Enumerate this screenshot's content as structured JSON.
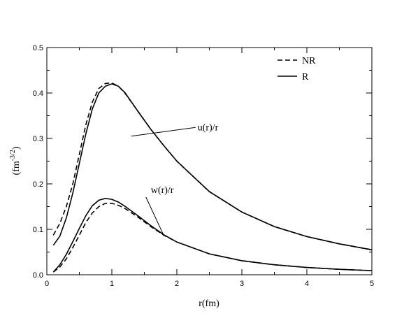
{
  "chart_data": {
    "type": "line",
    "xlabel": "r(fm)",
    "ylabel": "(fm",
    "ylabel_sup": "-3/2",
    "ylabel_close": ")",
    "xlim": [
      0,
      5
    ],
    "ylim": [
      0,
      0.5
    ],
    "x_ticks": [
      0,
      1,
      2,
      3,
      4,
      5
    ],
    "x_tick_labels": [
      "0",
      "1",
      "2",
      "3",
      "4",
      "5"
    ],
    "y_ticks": [
      0,
      0.1,
      0.2,
      0.3,
      0.4,
      0.5
    ],
    "y_tick_labels": [
      "0.0",
      "0.1",
      "0.2",
      "0.3",
      "0.4",
      "0.5"
    ],
    "grid": false,
    "legend_position": "top-right",
    "legend": [
      {
        "label": "NR",
        "dash": "dashed"
      },
      {
        "label": "R",
        "dash": "solid"
      }
    ],
    "annotations": [
      {
        "text": "u(r)/r",
        "x": 1.3,
        "y": 0.305,
        "text_x": 2.32,
        "text_y": 0.318
      },
      {
        "text": "w(r)/r",
        "x": 1.8,
        "y": 0.086,
        "text_x": 1.6,
        "text_y": 0.18
      }
    ],
    "series": [
      {
        "name": "NR",
        "component": "u(r)/r",
        "dash": "dashed",
        "x": [
          0.1,
          0.2,
          0.3,
          0.4,
          0.5,
          0.6,
          0.7,
          0.8,
          0.9,
          1.0,
          1.1,
          1.2,
          1.4,
          1.6,
          1.8,
          2.0,
          2.5,
          3.0,
          3.5,
          4.0,
          4.5,
          5.0
        ],
        "y": [
          0.087,
          0.113,
          0.15,
          0.2,
          0.265,
          0.33,
          0.38,
          0.41,
          0.421,
          0.422,
          0.415,
          0.4,
          0.36,
          0.32,
          0.284,
          0.25,
          0.183,
          0.138,
          0.106,
          0.084,
          0.068,
          0.055
        ]
      },
      {
        "name": "R",
        "component": "u(r)/r",
        "dash": "solid",
        "x": [
          0.1,
          0.2,
          0.3,
          0.4,
          0.5,
          0.6,
          0.7,
          0.8,
          0.9,
          1.0,
          1.1,
          1.2,
          1.4,
          1.6,
          1.8,
          2.0,
          2.5,
          3.0,
          3.5,
          4.0,
          4.5,
          5.0
        ],
        "y": [
          0.065,
          0.085,
          0.125,
          0.18,
          0.245,
          0.31,
          0.365,
          0.4,
          0.415,
          0.42,
          0.415,
          0.401,
          0.36,
          0.32,
          0.284,
          0.25,
          0.183,
          0.138,
          0.106,
          0.084,
          0.068,
          0.055
        ]
      },
      {
        "name": "NR",
        "component": "w(r)/r",
        "dash": "dashed",
        "x": [
          0.1,
          0.2,
          0.3,
          0.4,
          0.5,
          0.6,
          0.7,
          0.8,
          0.9,
          1.0,
          1.1,
          1.2,
          1.4,
          1.6,
          1.8,
          2.0,
          2.5,
          3.0,
          3.5,
          4.0,
          4.5,
          5.0
        ],
        "y": [
          0.006,
          0.017,
          0.035,
          0.06,
          0.087,
          0.115,
          0.136,
          0.15,
          0.157,
          0.157,
          0.153,
          0.146,
          0.127,
          0.106,
          0.087,
          0.072,
          0.046,
          0.031,
          0.022,
          0.016,
          0.012,
          0.009
        ]
      },
      {
        "name": "R",
        "component": "w(r)/r",
        "dash": "solid",
        "x": [
          0.1,
          0.2,
          0.3,
          0.4,
          0.5,
          0.6,
          0.7,
          0.8,
          0.9,
          1.0,
          1.1,
          1.2,
          1.4,
          1.6,
          1.8,
          2.0,
          2.5,
          3.0,
          3.5,
          4.0,
          4.5,
          5.0
        ],
        "y": [
          0.006,
          0.022,
          0.045,
          0.073,
          0.102,
          0.13,
          0.152,
          0.164,
          0.168,
          0.166,
          0.16,
          0.151,
          0.13,
          0.108,
          0.088,
          0.072,
          0.046,
          0.031,
          0.022,
          0.016,
          0.012,
          0.009
        ]
      }
    ]
  }
}
